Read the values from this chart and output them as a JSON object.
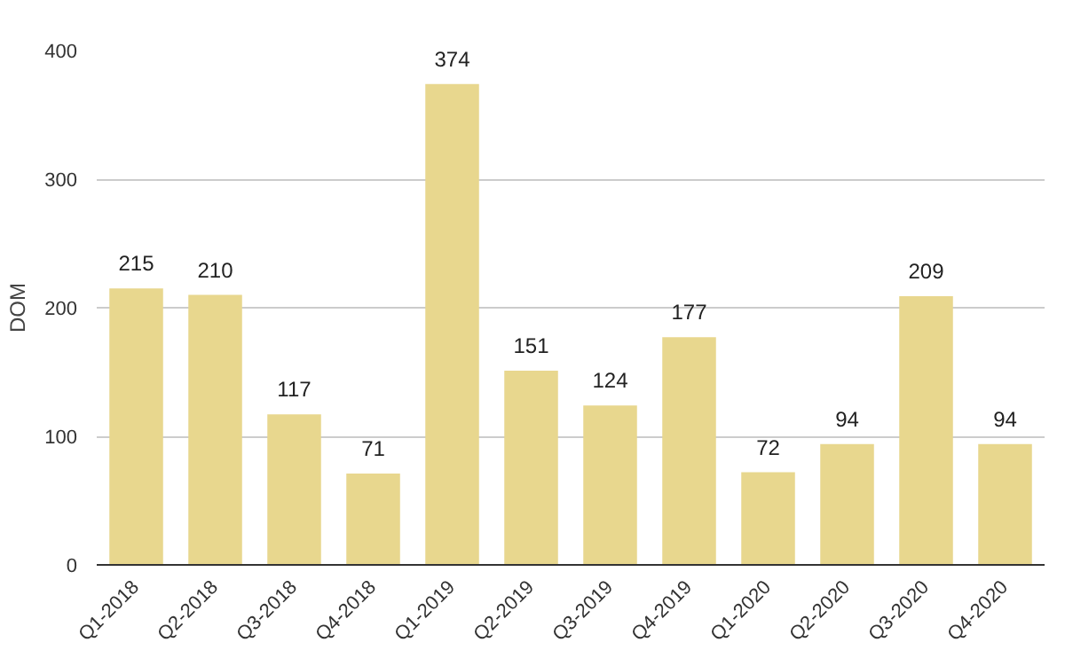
{
  "chart_data": {
    "type": "bar",
    "ylabel": "DOM",
    "categories": [
      "Q1-2018",
      "Q2-2018",
      "Q3-2018",
      "Q4-2018",
      "Q1-2019",
      "Q2-2019",
      "Q3-2019",
      "Q4-2019",
      "Q1-2020",
      "Q2-2020",
      "Q3-2020",
      "Q4-2020"
    ],
    "values": [
      215,
      210,
      117,
      71,
      374,
      151,
      124,
      177,
      72,
      94,
      209,
      94
    ],
    "color": "#e8d78e",
    "ylim": [
      0,
      400
    ],
    "yticks": [
      0,
      100,
      200,
      300,
      400
    ],
    "grid": "y",
    "data_labels": true
  }
}
